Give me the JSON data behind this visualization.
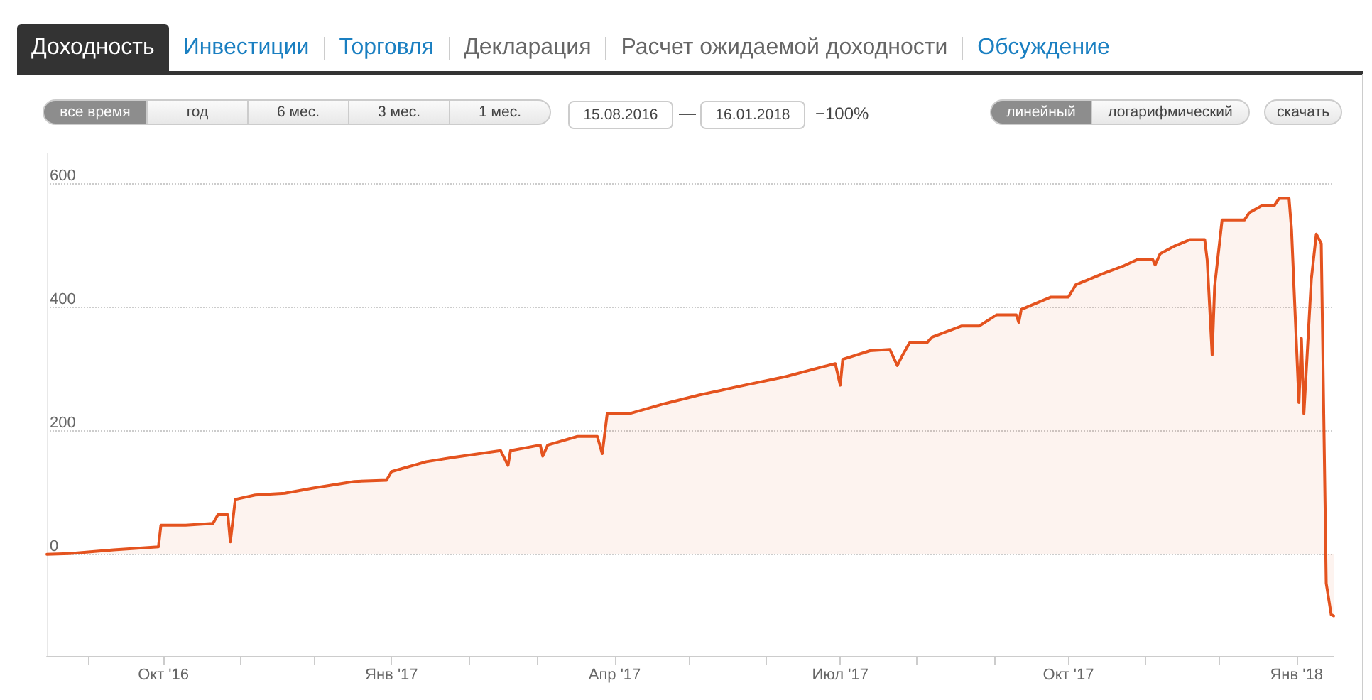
{
  "chart_data": {
    "type": "area",
    "annotations": [
      "Доходность",
      "Инвестиции",
      "Торговля",
      "Декларация",
      "Расчет ожидаемой доходности",
      "Обсуждение",
      "все время",
      "год",
      "6 мес.",
      "3 мес.",
      "1 мес.",
      "15.08.2016",
      "16.01.2018",
      "−100%",
      "линейный",
      "логарифмический",
      "скачать"
    ],
    "x": [
      "2016-08-15",
      "2016-08-24",
      "2016-09-11",
      "2016-09-29",
      "2016-09-30",
      "2016-10-10",
      "2016-10-21",
      "2016-10-23",
      "2016-10-27",
      "2016-10-28",
      "2016-10-30",
      "2016-11-07",
      "2016-11-19",
      "2016-11-30",
      "2016-12-17",
      "2016-12-30",
      "2017-01-01",
      "2017-01-15",
      "2017-01-26",
      "2017-02-14",
      "2017-02-17",
      "2017-02-18",
      "2017-03-02",
      "2017-03-03",
      "2017-03-05",
      "2017-03-17",
      "2017-03-25",
      "2017-03-27",
      "2017-03-29",
      "2017-04-07",
      "2017-04-21",
      "2017-05-05",
      "2017-05-21",
      "2017-06-09",
      "2017-06-24",
      "2017-06-29",
      "2017-07-01",
      "2017-07-02",
      "2017-07-13",
      "2017-07-21",
      "2017-07-24",
      "2017-07-26",
      "2017-07-29",
      "2017-08-05",
      "2017-08-07",
      "2017-08-19",
      "2017-08-26",
      "2017-09-02",
      "2017-09-10",
      "2017-09-11",
      "2017-09-12",
      "2017-09-24",
      "2017-10-01",
      "2017-10-04",
      "2017-10-15",
      "2017-10-23",
      "2017-10-29",
      "2017-11-04",
      "2017-11-05",
      "2017-11-07",
      "2017-11-13",
      "2017-11-19",
      "2017-11-25",
      "2017-11-26",
      "2017-11-28",
      "2017-11-29",
      "2017-12-02",
      "2017-12-11",
      "2017-12-13",
      "2017-12-18",
      "2017-12-23",
      "2017-12-25",
      "2017-12-29",
      "2017-12-30",
      "2018-01-02",
      "2018-01-03",
      "2018-01-04",
      "2018-01-07",
      "2018-01-09",
      "2018-01-11",
      "2018-01-13",
      "2018-01-15",
      "2018-01-16"
    ],
    "series": [
      {
        "color": "#e4531f",
        "values": [
          0,
          1,
          7,
          12,
          47,
          47,
          50,
          64,
          64,
          20,
          89,
          96,
          99,
          107,
          118,
          120,
          134,
          150,
          157,
          168,
          144,
          168,
          177,
          159,
          177,
          191,
          191,
          163,
          228,
          228,
          244,
          258,
          272,
          288,
          304,
          309,
          274,
          316,
          330,
          332,
          306,
          322,
          343,
          343,
          352,
          370,
          370,
          388,
          388,
          376,
          397,
          417,
          417,
          437,
          455,
          467,
          478,
          478,
          469,
          487,
          500,
          510,
          510,
          477,
          323,
          434,
          542,
          542,
          554,
          565,
          565,
          577,
          577,
          527,
          246,
          350,
          228,
          446,
          519,
          504,
          -47,
          -98,
          -100
        ]
      }
    ],
    "xlim": [
      "2016-08-15",
      "2018-01-16"
    ],
    "xticks": [
      {
        "value": "2016-09-01",
        "label": null
      },
      {
        "value": "2016-10-01",
        "label": "Окт '16"
      },
      {
        "value": "2016-11-01",
        "label": null
      },
      {
        "value": "2016-12-01",
        "label": null
      },
      {
        "value": "2017-01-01",
        "label": "Янв '17"
      },
      {
        "value": "2017-02-01",
        "label": null
      },
      {
        "value": "2017-03-01",
        "label": null
      },
      {
        "value": "2017-04-01",
        "label": "Апр '17"
      },
      {
        "value": "2017-05-01",
        "label": null
      },
      {
        "value": "2017-06-01",
        "label": null
      },
      {
        "value": "2017-07-01",
        "label": "Июл '17"
      },
      {
        "value": "2017-08-01",
        "label": null
      },
      {
        "value": "2017-09-01",
        "label": null
      },
      {
        "value": "2017-10-01",
        "label": "Окт '17"
      },
      {
        "value": "2017-11-01",
        "label": null
      },
      {
        "value": "2017-12-01",
        "label": null
      },
      {
        "value": "2018-01-01",
        "label": "Янв '18"
      }
    ],
    "ylim": [
      -165,
      650
    ],
    "yticks": [
      0,
      200,
      400,
      600
    ],
    "grid": "y"
  }
}
